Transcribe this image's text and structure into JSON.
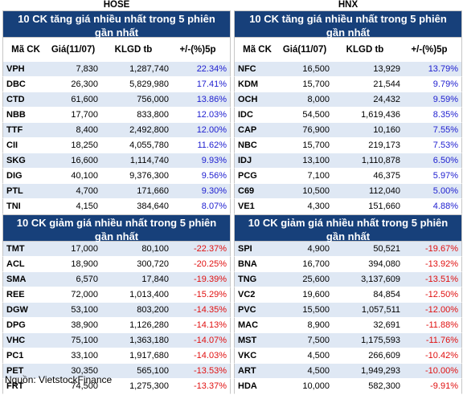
{
  "hose": {
    "exchange": "HOSE",
    "gain_title": "10 CK tăng giá nhiều nhất trong 5 phiên gần nhất",
    "loss_title": "10 CK giảm giá nhiều nhất trong 5 phiên gần nhất",
    "gainers": [
      {
        "code": "VPH",
        "price": "7,830",
        "volume": "1,287,740",
        "change": "22.34%"
      },
      {
        "code": "DBC",
        "price": "26,300",
        "volume": "5,829,980",
        "change": "17.41%"
      },
      {
        "code": "CTD",
        "price": "61,600",
        "volume": "756,000",
        "change": "13.86%"
      },
      {
        "code": "NBB",
        "price": "17,700",
        "volume": "833,800",
        "change": "12.03%"
      },
      {
        "code": "TTF",
        "price": "8,400",
        "volume": "2,492,800",
        "change": "12.00%"
      },
      {
        "code": "CII",
        "price": "18,250",
        "volume": "4,055,780",
        "change": "11.62%"
      },
      {
        "code": "SKG",
        "price": "16,600",
        "volume": "1,114,740",
        "change": "9.93%"
      },
      {
        "code": "DIG",
        "price": "40,100",
        "volume": "9,376,300",
        "change": "9.56%"
      },
      {
        "code": "PTL",
        "price": "4,700",
        "volume": "171,660",
        "change": "9.30%"
      },
      {
        "code": "TNI",
        "price": "4,150",
        "volume": "384,640",
        "change": "8.07%"
      }
    ],
    "losers": [
      {
        "code": "TMT",
        "price": "17,000",
        "volume": "80,100",
        "change": "-22.37%"
      },
      {
        "code": "ACL",
        "price": "18,900",
        "volume": "300,720",
        "change": "-20.25%"
      },
      {
        "code": "SMA",
        "price": "6,570",
        "volume": "17,840",
        "change": "-19.39%"
      },
      {
        "code": "REE",
        "price": "72,000",
        "volume": "1,013,400",
        "change": "-15.29%"
      },
      {
        "code": "DGW",
        "price": "53,100",
        "volume": "803,200",
        "change": "-14.35%"
      },
      {
        "code": "DPG",
        "price": "38,900",
        "volume": "1,126,280",
        "change": "-14.13%"
      },
      {
        "code": "VHC",
        "price": "75,100",
        "volume": "1,363,180",
        "change": "-14.07%"
      },
      {
        "code": "PC1",
        "price": "33,100",
        "volume": "1,917,680",
        "change": "-14.03%"
      },
      {
        "code": "PET",
        "price": "30,350",
        "volume": "565,100",
        "change": "-13.53%"
      },
      {
        "code": "FRT",
        "price": "74,500",
        "volume": "1,275,300",
        "change": "-13.37%"
      }
    ]
  },
  "hnx": {
    "exchange": "HNX",
    "gain_title": "10 CK tăng giá nhiều nhất trong 5 phiên gần nhất",
    "loss_title": "10 CK giảm giá nhiều nhất trong 5 phiên gần nhất",
    "gainers": [
      {
        "code": "NFC",
        "price": "16,500",
        "volume": "13,929",
        "change": "13.79%"
      },
      {
        "code": "KDM",
        "price": "15,700",
        "volume": "21,544",
        "change": "9.79%"
      },
      {
        "code": "OCH",
        "price": "8,000",
        "volume": "24,432",
        "change": "9.59%"
      },
      {
        "code": "IDC",
        "price": "54,500",
        "volume": "1,619,436",
        "change": "8.35%"
      },
      {
        "code": "CAP",
        "price": "76,900",
        "volume": "10,160",
        "change": "7.55%"
      },
      {
        "code": "NBC",
        "price": "15,700",
        "volume": "219,173",
        "change": "7.53%"
      },
      {
        "code": "IDJ",
        "price": "13,100",
        "volume": "1,110,878",
        "change": "6.50%"
      },
      {
        "code": "PCG",
        "price": "7,100",
        "volume": "46,375",
        "change": "5.97%"
      },
      {
        "code": "C69",
        "price": "10,500",
        "volume": "112,040",
        "change": "5.00%"
      },
      {
        "code": "VE1",
        "price": "4,300",
        "volume": "151,660",
        "change": "4.88%"
      }
    ],
    "losers": [
      {
        "code": "SPI",
        "price": "4,900",
        "volume": "50,521",
        "change": "-19.67%"
      },
      {
        "code": "BNA",
        "price": "16,700",
        "volume": "394,080",
        "change": "-13.92%"
      },
      {
        "code": "TNG",
        "price": "25,600",
        "volume": "3,137,609",
        "change": "-13.51%"
      },
      {
        "code": "VC2",
        "price": "19,600",
        "volume": "84,854",
        "change": "-12.50%"
      },
      {
        "code": "PVC",
        "price": "15,500",
        "volume": "1,057,511",
        "change": "-12.00%"
      },
      {
        "code": "MAC",
        "price": "8,900",
        "volume": "32,691",
        "change": "-11.88%"
      },
      {
        "code": "MST",
        "price": "7,500",
        "volume": "1,175,593",
        "change": "-11.76%"
      },
      {
        "code": "VKC",
        "price": "4,500",
        "volume": "266,609",
        "change": "-10.42%"
      },
      {
        "code": "ART",
        "price": "4,500",
        "volume": "1,949,293",
        "change": "-10.00%"
      },
      {
        "code": "HDA",
        "price": "10,000",
        "volume": "582,300",
        "change": "-9.91%"
      }
    ]
  },
  "columns": {
    "code": "Mã CK",
    "price": "Giá(11/07)",
    "volume": "KLGD tb",
    "change": "+/-(%)5p"
  },
  "source": "Nguồn: VietstockFinance",
  "colors": {
    "header_bg": "#17407a",
    "row_alt": "#dfe8f4",
    "up": "#2020d0",
    "down": "#e01010"
  }
}
